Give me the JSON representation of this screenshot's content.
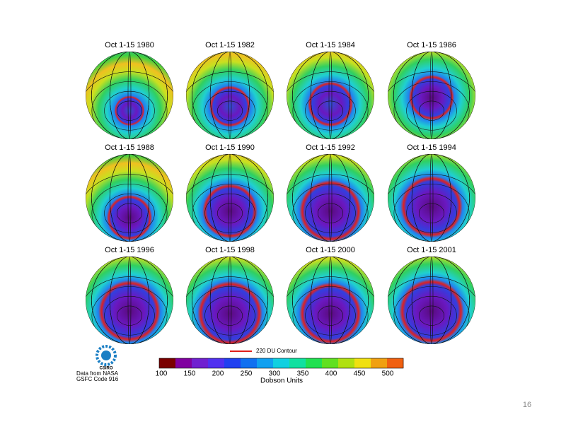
{
  "panels": [
    {
      "title": "Oct 1-15 1980"
    },
    {
      "title": "Oct 1-15 1982"
    },
    {
      "title": "Oct 1-15 1984"
    },
    {
      "title": "Oct 1-15 1986"
    },
    {
      "title": "Oct 1-15 1988"
    },
    {
      "title": "Oct 1-15 1990"
    },
    {
      "title": "Oct 1-15 1992"
    },
    {
      "title": "Oct 1-15 1994"
    },
    {
      "title": "Oct 1-15 1996"
    },
    {
      "title": "Oct 1-15 1998"
    },
    {
      "title": "Oct 1-15 2000"
    },
    {
      "title": "Oct 1-15 2001"
    }
  ],
  "contour_legend": "220 DU Contour",
  "colorbar": {
    "ticks": [
      "100",
      "150",
      "200",
      "250",
      "300",
      "350",
      "400",
      "450",
      "500"
    ],
    "label": "Dobson Units"
  },
  "credit": {
    "logo": "CSIRO",
    "lines": [
      "Data from NASA",
      "GSFC Code 916"
    ]
  },
  "page_number": "16"
}
